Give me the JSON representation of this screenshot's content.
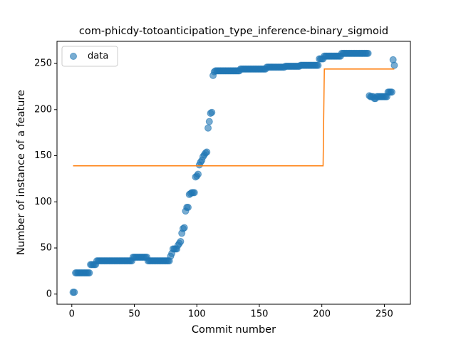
{
  "chart_data": {
    "type": "scatter",
    "title": "com-phicdy-totoanticipation_type_inference-binary_sigmoid",
    "xlabel": "Commit number",
    "ylabel": "Number of instance of a feature",
    "xlim": [
      -11.85,
      270.85
    ],
    "ylim": [
      -11,
      274
    ],
    "xticks": [
      0,
      50,
      100,
      150,
      200,
      250
    ],
    "yticks": [
      0,
      50,
      100,
      150,
      200,
      250
    ],
    "legend": "upper left",
    "series": [
      {
        "name": "data",
        "color": "#1f77b4",
        "x": [
          1,
          2,
          3,
          4,
          5,
          6,
          7,
          8,
          9,
          10,
          11,
          12,
          13,
          14,
          15,
          16,
          17,
          18,
          19,
          20,
          21,
          22,
          23,
          24,
          25,
          26,
          27,
          28,
          29,
          30,
          31,
          32,
          33,
          34,
          35,
          36,
          37,
          38,
          39,
          40,
          41,
          42,
          43,
          44,
          45,
          46,
          47,
          48,
          49,
          50,
          51,
          52,
          53,
          54,
          55,
          56,
          57,
          58,
          59,
          60,
          61,
          62,
          63,
          64,
          65,
          66,
          67,
          68,
          69,
          70,
          71,
          72,
          73,
          74,
          75,
          76,
          77,
          78,
          79,
          80,
          81,
          82,
          83,
          84,
          85,
          86,
          87,
          88,
          89,
          90,
          91,
          92,
          93,
          94,
          95,
          96,
          97,
          98,
          99,
          100,
          101,
          102,
          103,
          104,
          105,
          106,
          107,
          108,
          109,
          110,
          111,
          112,
          113,
          114,
          115,
          116,
          117,
          118,
          119,
          120,
          121,
          122,
          123,
          124,
          125,
          126,
          127,
          128,
          129,
          130,
          131,
          132,
          133,
          134,
          135,
          136,
          137,
          138,
          139,
          140,
          141,
          142,
          143,
          144,
          145,
          146,
          147,
          148,
          149,
          150,
          151,
          152,
          153,
          154,
          155,
          156,
          157,
          158,
          159,
          160,
          161,
          162,
          163,
          164,
          165,
          166,
          167,
          168,
          169,
          170,
          171,
          172,
          173,
          174,
          175,
          176,
          177,
          178,
          179,
          180,
          181,
          182,
          183,
          184,
          185,
          186,
          187,
          188,
          189,
          190,
          191,
          192,
          193,
          194,
          195,
          196,
          197,
          198,
          199,
          200,
          201,
          202,
          203,
          204,
          205,
          206,
          207,
          208,
          209,
          210,
          211,
          212,
          213,
          214,
          215,
          216,
          217,
          218,
          219,
          220,
          221,
          222,
          223,
          224,
          225,
          226,
          227,
          228,
          229,
          230,
          231,
          232,
          233,
          234,
          235,
          236,
          237,
          238,
          239,
          240,
          241,
          242,
          243,
          244,
          245,
          246,
          247,
          248,
          249,
          250,
          251,
          252,
          253,
          254,
          255,
          256,
          257,
          258
        ],
        "values": [
          2,
          2,
          23,
          23,
          23,
          23,
          23,
          23,
          23,
          23,
          23,
          23,
          23,
          23,
          32,
          32,
          32,
          32,
          32,
          36,
          36,
          36,
          36,
          36,
          36,
          36,
          36,
          36,
          36,
          36,
          36,
          36,
          36,
          36,
          36,
          36,
          36,
          36,
          36,
          36,
          36,
          36,
          36,
          36,
          36,
          36,
          36,
          36,
          40,
          40,
          40,
          40,
          40,
          40,
          40,
          40,
          40,
          40,
          40,
          40,
          36,
          36,
          36,
          36,
          36,
          36,
          36,
          36,
          36,
          36,
          36,
          36,
          36,
          36,
          36,
          36,
          36,
          36,
          41,
          44,
          49,
          49,
          49,
          49,
          53,
          55,
          57,
          66,
          71,
          72,
          90,
          94,
          94,
          108,
          109,
          110,
          110,
          110,
          127,
          128,
          130,
          140,
          143,
          145,
          149,
          151,
          153,
          154,
          180,
          187,
          196,
          197,
          237,
          241,
          242,
          242,
          242,
          242,
          242,
          242,
          242,
          242,
          242,
          242,
          242,
          242,
          242,
          242,
          242,
          242,
          242,
          242,
          242,
          242,
          244,
          244,
          244,
          244,
          244,
          244,
          244,
          244,
          244,
          244,
          244,
          244,
          244,
          244,
          244,
          244,
          244,
          244,
          244,
          244,
          244,
          246,
          246,
          246,
          246,
          246,
          246,
          246,
          246,
          246,
          246,
          246,
          246,
          246,
          246,
          246,
          247,
          247,
          247,
          247,
          247,
          247,
          247,
          247,
          247,
          247,
          247,
          247,
          248,
          248,
          248,
          248,
          248,
          248,
          248,
          248,
          248,
          248,
          248,
          248,
          248,
          248,
          248,
          255,
          255,
          255,
          255,
          258,
          258,
          258,
          258,
          258,
          258,
          258,
          258,
          258,
          258,
          258,
          258,
          258,
          258,
          261,
          261,
          261,
          261,
          261,
          261,
          261,
          261,
          261,
          261,
          261,
          261,
          261,
          261,
          261,
          261,
          261,
          261,
          261,
          261,
          261,
          261,
          215,
          214,
          214,
          214,
          212,
          212,
          214,
          214,
          214,
          214,
          214,
          214,
          214,
          214,
          214,
          219,
          219,
          219,
          219,
          254,
          248
        ]
      },
      {
        "type": "line",
        "color": "#ff7f0e",
        "x": [
          1,
          201,
          202,
          258
        ],
        "values": [
          139,
          139,
          244,
          244
        ]
      }
    ]
  }
}
